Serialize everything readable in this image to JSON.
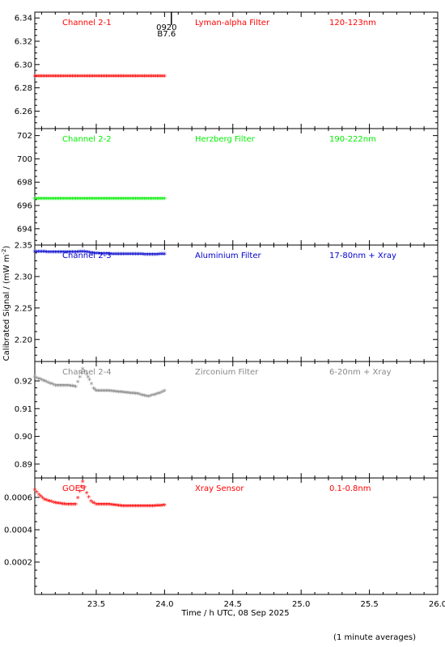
{
  "chart_data": {
    "type": "scatter",
    "xlabel": "Time / h UTC, 08 Sep 2025",
    "ylabel": "Calibrated Signal / (mW m",
    "ylabel_sup": "-2",
    "ylabel_close": ")",
    "footnote": "(1 minute averages)",
    "xlim": [
      23.05,
      26.0
    ],
    "x_ticks": [
      23.5,
      24.0,
      24.5,
      25.0,
      25.5,
      26.0
    ],
    "x_tick_labels": [
      "23.5",
      "24.0",
      "24.5",
      "25.0",
      "25.5",
      "26.0"
    ],
    "event_marker": {
      "x": 24.05,
      "label_time": "0920",
      "label_code": "B7.6",
      "color": "#000000"
    },
    "panels": [
      {
        "channel": "Channel 2-1",
        "filter": "Lyman-alpha Filter",
        "band": "120-123nm",
        "color": "#ff0000",
        "ylim": [
          6.245,
          6.345
        ],
        "y_ticks": [
          6.26,
          6.28,
          6.3,
          6.32,
          6.34
        ],
        "y_tick_labels": [
          "6.26",
          "6.28",
          "6.30",
          "6.32",
          "6.34"
        ],
        "x": [
          23.05,
          23.2,
          23.35,
          23.5,
          23.65,
          23.8,
          24.0
        ],
        "y": [
          6.289,
          6.289,
          6.289,
          6.289,
          6.289,
          6.289,
          6.289
        ]
      },
      {
        "channel": "Channel 2-2",
        "filter": "Herzberg Filter",
        "band": "190-222nm",
        "color": "#00ee00",
        "ylim": [
          692.6,
          702.6
        ],
        "y_ticks": [
          694,
          696,
          698,
          700,
          702
        ],
        "y_tick_labels": [
          "694",
          "696",
          "698",
          "700",
          "702"
        ],
        "x": [
          23.05,
          23.2,
          23.35,
          23.5,
          23.65,
          23.8,
          24.0
        ],
        "y": [
          696.5,
          696.5,
          696.5,
          696.5,
          696.5,
          696.5,
          696.5
        ]
      },
      {
        "channel": "Channel 2-3",
        "filter": "Aluminium Filter",
        "band": "17-80nm + Xray",
        "color": "#0000cc",
        "ylim": [
          2.165,
          2.35
        ],
        "y_ticks": [
          2.2,
          2.25,
          2.3,
          2.35
        ],
        "y_tick_labels": [
          "2.20",
          "2.25",
          "2.30",
          "2.35"
        ],
        "x": [
          23.05,
          23.2,
          23.35,
          23.4,
          23.5,
          23.65,
          23.8,
          23.9,
          24.0
        ],
        "y": [
          2.338,
          2.337,
          2.337,
          2.338,
          2.335,
          2.334,
          2.334,
          2.333,
          2.334
        ]
      },
      {
        "channel": "Channel 2-4",
        "filter": "Zirconium Filter",
        "band": "6-20nm + Xray",
        "color": "#888888",
        "ylim": [
          0.885,
          0.927
        ],
        "y_ticks": [
          0.89,
          0.9,
          0.91,
          0.92
        ],
        "y_tick_labels": [
          "0.89",
          "0.90",
          "0.91",
          "0.92"
        ],
        "x": [
          23.05,
          23.1,
          23.15,
          23.2,
          23.3,
          23.35,
          23.38,
          23.4,
          23.43,
          23.45,
          23.48,
          23.5,
          23.6,
          23.7,
          23.8,
          23.88,
          23.95,
          24.0
        ],
        "y": [
          0.921,
          0.92,
          0.919,
          0.918,
          0.918,
          0.9175,
          0.921,
          0.924,
          0.922,
          0.92,
          0.917,
          0.916,
          0.916,
          0.9155,
          0.915,
          0.914,
          0.915,
          0.916
        ]
      },
      {
        "channel": "GOES",
        "filter": "Xray Sensor",
        "band": "0.1-0.8nm",
        "color": "#ff0000",
        "ylim": [
          0.0,
          0.00072
        ],
        "y_ticks": [
          0.0002,
          0.0004,
          0.0006
        ],
        "y_tick_labels": [
          "0.0002",
          "0.0004",
          "0.0006"
        ],
        "x": [
          23.05,
          23.08,
          23.12,
          23.2,
          23.28,
          23.35,
          23.38,
          23.4,
          23.43,
          23.46,
          23.5,
          23.6,
          23.7,
          23.8,
          23.9,
          24.0
        ],
        "y": [
          0.00064,
          0.00061,
          0.00058,
          0.00056,
          0.00055,
          0.00055,
          0.00063,
          0.00069,
          0.00062,
          0.00057,
          0.00055,
          0.00055,
          0.00054,
          0.00054,
          0.00054,
          0.000545
        ]
      }
    ]
  }
}
